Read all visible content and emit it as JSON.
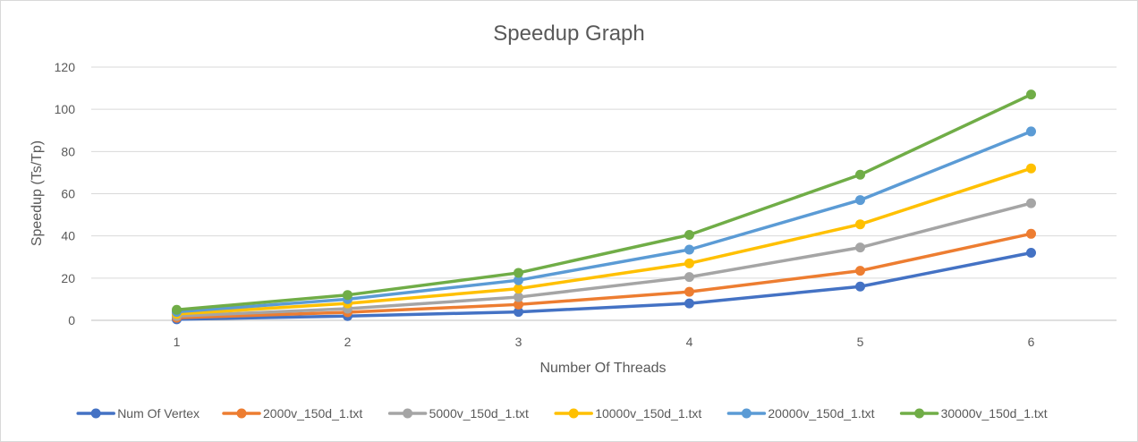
{
  "chart_data": {
    "type": "line",
    "title": "Speedup Graph",
    "xlabel": "Number Of  Threads",
    "ylabel": "Speedup (Ts/Tp)",
    "categories": [
      "1",
      "2",
      "3",
      "4",
      "5",
      "6"
    ],
    "ylim": [
      0,
      120
    ],
    "yticks": [
      0,
      20,
      40,
      60,
      80,
      100,
      120
    ],
    "grid": true,
    "legend_position": "bottom",
    "series": [
      {
        "name": "Num Of Vertex",
        "color": "#4472C4",
        "values": [
          0.5,
          2,
          4,
          8,
          16,
          32
        ]
      },
      {
        "name": "2000v_150d_1.txt",
        "color": "#ED7D31",
        "values": [
          1.2,
          3.8,
          7.5,
          13.5,
          23.5,
          41
        ]
      },
      {
        "name": "5000v_150d_1.txt",
        "color": "#A5A5A5",
        "values": [
          2,
          5.5,
          11,
          20.5,
          34.5,
          55.5
        ]
      },
      {
        "name": "10000v_150d_1.txt",
        "color": "#FFC000",
        "values": [
          3,
          8,
          15,
          27,
          45.5,
          72
        ]
      },
      {
        "name": "20000v_150d_1.txt",
        "color": "#5B9BD5",
        "values": [
          4,
          10,
          19,
          33.5,
          57,
          89.5
        ]
      },
      {
        "name": "30000v_150d_1.txt",
        "color": "#70AD47",
        "values": [
          5,
          12,
          22.5,
          40.5,
          69,
          107
        ]
      }
    ]
  }
}
